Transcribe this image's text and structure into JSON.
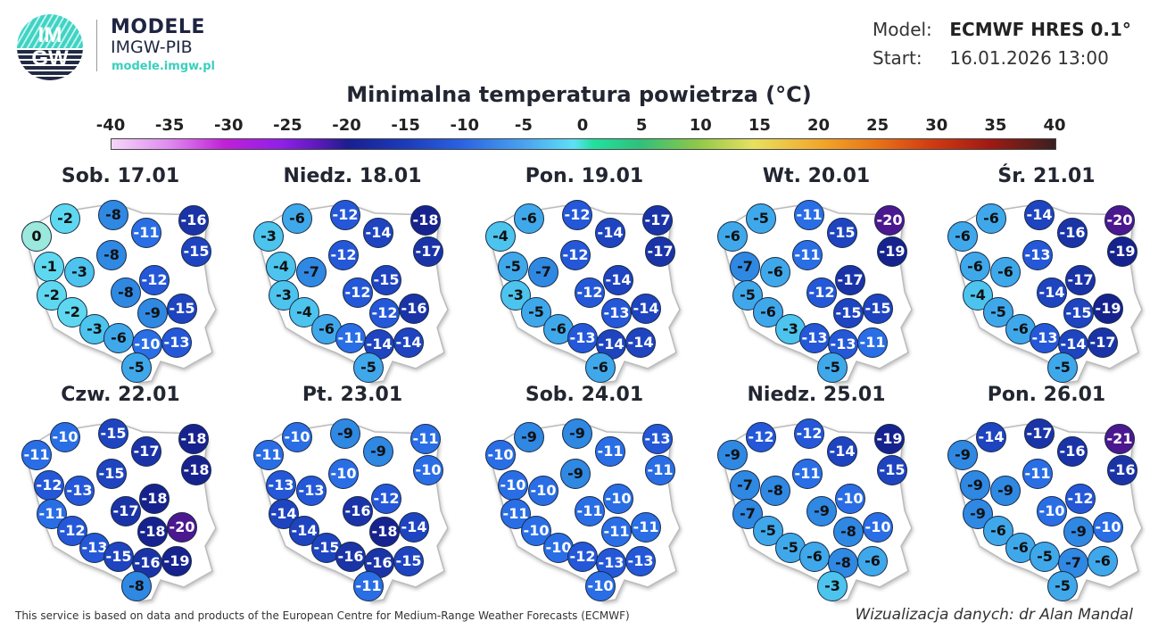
{
  "header": {
    "logo_text_top": "IM",
    "logo_text_bottom": "GW",
    "brand_line1": "MODELE",
    "brand_line2": "IMGW-PIB",
    "brand_url": "modele.imgw.pl",
    "model_label": "Model:",
    "model_value": "ECMWF HRES 0.1°",
    "start_label": "Start:",
    "start_value": "16.01.2026 13:00"
  },
  "footer": {
    "attribution": "This service is based on data and products of the European Centre for Medium-Range Weather Forecasts (ECMWF)",
    "credit": "Wizualizacja danych: dr Alan Mandal"
  },
  "colors": {
    "text_dark": "#222631",
    "brand_teal": "#3bcfbd",
    "brand_navy": "#1e2540"
  },
  "chart_data": {
    "type": "heatmap",
    "title": "Minimalna temperatura powietrza (°C)",
    "colorbar": {
      "ticks": [
        -40,
        -35,
        -30,
        -25,
        -20,
        -15,
        -10,
        -5,
        0,
        5,
        10,
        15,
        20,
        25,
        30,
        35,
        40
      ],
      "range": [
        -40,
        40
      ],
      "unit": "°C"
    },
    "station_positions": [
      [
        20,
        42
      ],
      [
        52,
        22
      ],
      [
        106,
        18
      ],
      [
        143,
        38
      ],
      [
        196,
        24
      ],
      [
        34,
        76
      ],
      [
        68,
        82
      ],
      [
        104,
        63
      ],
      [
        199,
        59
      ],
      [
        37,
        108
      ],
      [
        152,
        91
      ],
      [
        120,
        105
      ],
      [
        60,
        127
      ],
      [
        85,
        146
      ],
      [
        112,
        156
      ],
      [
        183,
        123
      ],
      [
        150,
        128
      ],
      [
        144,
        163
      ],
      [
        177,
        161
      ],
      [
        132,
        189
      ]
    ],
    "maps": [
      {
        "day": "Sob. 17.01",
        "values": [
          0,
          -2,
          -8,
          -11,
          -16,
          -1,
          -3,
          -8,
          -15,
          -2,
          -12,
          -8,
          -2,
          -3,
          -6,
          -15,
          -9,
          -10,
          -13,
          -5
        ]
      },
      {
        "day": "Niedz. 18.01",
        "values": [
          -3,
          -6,
          -12,
          -14,
          -18,
          -4,
          -7,
          -12,
          -17,
          -3,
          -15,
          -12,
          -4,
          -6,
          -11,
          -16,
          -12,
          -14,
          -14,
          -5
        ]
      },
      {
        "day": "Pon. 19.01",
        "values": [
          -4,
          -6,
          -12,
          -14,
          -17,
          -5,
          -7,
          -12,
          -17,
          -3,
          -14,
          -12,
          -5,
          -6,
          -13,
          -14,
          -13,
          -14,
          -14,
          -6
        ]
      },
      {
        "day": "Wt. 20.01",
        "values": [
          -6,
          -5,
          -11,
          -15,
          -20,
          -7,
          -6,
          -11,
          -19,
          -5,
          -17,
          -12,
          -6,
          -3,
          -13,
          -15,
          -15,
          -13,
          -11,
          -5
        ]
      },
      {
        "day": "Śr. 21.01",
        "values": [
          -6,
          -6,
          -14,
          -16,
          -20,
          -6,
          -6,
          -13,
          -19,
          -4,
          -17,
          -14,
          -5,
          -6,
          -13,
          -19,
          -15,
          -14,
          -17,
          -5
        ]
      },
      {
        "day": "Czw. 22.01",
        "values": [
          -11,
          -10,
          -15,
          -17,
          -18,
          -12,
          -13,
          -15,
          -18,
          -11,
          -18,
          -17,
          -12,
          -13,
          -15,
          -20,
          -18,
          -16,
          -19,
          -8
        ]
      },
      {
        "day": "Pt. 23.01",
        "values": [
          -11,
          -10,
          -9,
          -9,
          -11,
          -13,
          -13,
          -10,
          -10,
          -14,
          -12,
          -16,
          -14,
          -15,
          -16,
          -14,
          -18,
          -16,
          -15,
          -11
        ]
      },
      {
        "day": "Sob. 24.01",
        "values": [
          -10,
          -9,
          -9,
          -11,
          -13,
          -10,
          -10,
          -9,
          -11,
          -11,
          -10,
          -11,
          -10,
          -10,
          -12,
          -11,
          -11,
          -13,
          -13,
          -10
        ]
      },
      {
        "day": "Niedz. 25.01",
        "values": [
          -9,
          -12,
          -12,
          -14,
          -19,
          -7,
          -8,
          -11,
          -15,
          -7,
          -10,
          -9,
          -5,
          -5,
          -6,
          -10,
          -8,
          -8,
          -6,
          -3
        ]
      },
      {
        "day": "Pon. 26.01",
        "values": [
          -9,
          -14,
          -17,
          -16,
          -21,
          -9,
          -9,
          -11,
          -16,
          -9,
          -12,
          -10,
          -6,
          -6,
          -5,
          -10,
          -9,
          -7,
          -6,
          -5
        ]
      }
    ]
  }
}
